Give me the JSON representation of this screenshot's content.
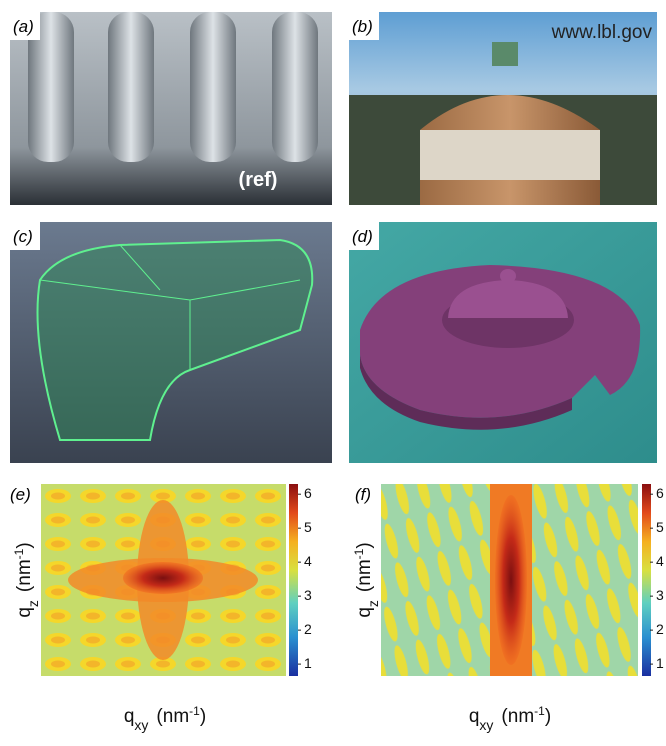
{
  "panels": [
    {
      "label": "(a)",
      "annotation": "(ref)"
    },
    {
      "label": "(b)",
      "annotation": "www.lbl.gov"
    },
    {
      "label": "(c)"
    },
    {
      "label": "(d)"
    },
    {
      "label": "(e)",
      "y_label": {
        "base": "q",
        "sub": "z",
        "unit": "(nm",
        "sup": "-1",
        "close": ")"
      },
      "x_label": {
        "base": "q",
        "sub": "xy",
        "unit": "(nm",
        "sup": "-1",
        "close": ")"
      },
      "colorbar": {
        "range": [
          0.65,
          6.3
        ],
        "ticks": [
          1,
          2,
          3,
          4,
          5,
          6
        ]
      }
    },
    {
      "label": "(f)",
      "y_label": {
        "base": "q",
        "sub": "z",
        "unit": "(nm",
        "sup": "-1",
        "close": ")"
      },
      "x_label": {
        "base": "q",
        "sub": "xy",
        "unit": "(nm",
        "sup": "-1",
        "close": ")"
      },
      "colorbar": {
        "range": [
          0.65,
          6.3
        ],
        "ticks": [
          1,
          2,
          3,
          4,
          5,
          6
        ]
      }
    }
  ]
}
